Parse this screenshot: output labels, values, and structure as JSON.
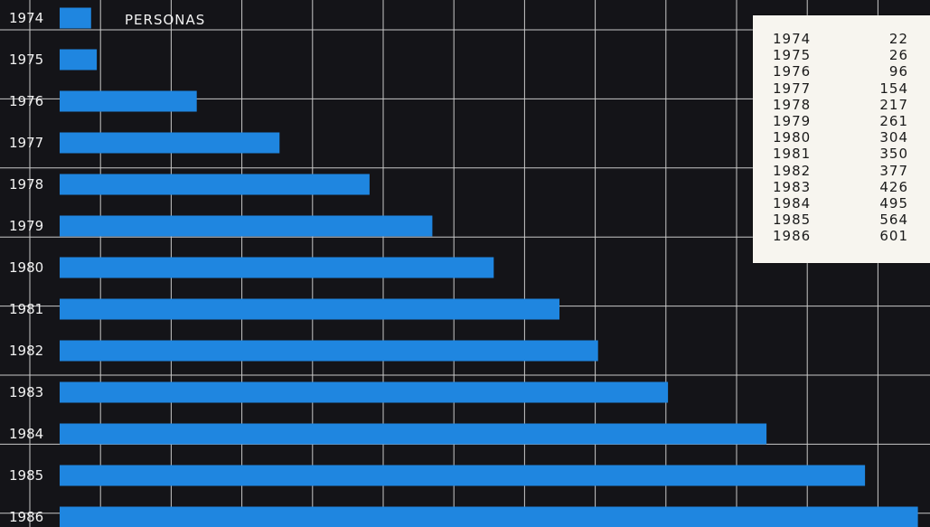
{
  "chart_data": {
    "type": "bar",
    "orientation": "horizontal",
    "unit_label": "PERSONAS",
    "categories": [
      "1974",
      "1975",
      "1976",
      "1977",
      "1978",
      "1979",
      "1980",
      "1981",
      "1982",
      "1983",
      "1984",
      "1985",
      "1986"
    ],
    "values": [
      22,
      26,
      96,
      154,
      217,
      261,
      304,
      350,
      377,
      426,
      495,
      564,
      601
    ],
    "xlim": [
      0,
      610
    ],
    "grid": true,
    "bar_color": "#1f86e0",
    "background_color": "#141418",
    "grid_color": "#c8c8c8"
  },
  "table": {
    "rows": [
      {
        "year": "1974",
        "value": "22"
      },
      {
        "year": "1975",
        "value": "26"
      },
      {
        "year": "1976",
        "value": "96"
      },
      {
        "year": "1977",
        "value": "154"
      },
      {
        "year": "1978",
        "value": "217"
      },
      {
        "year": "1979",
        "value": "261"
      },
      {
        "year": "1980",
        "value": "304"
      },
      {
        "year": "1981",
        "value": "350"
      },
      {
        "year": "1982",
        "value": "377"
      },
      {
        "year": "1983",
        "value": "426"
      },
      {
        "year": "1984",
        "value": "495"
      },
      {
        "year": "1985",
        "value": "564"
      },
      {
        "year": "1986",
        "value": "601"
      }
    ]
  }
}
